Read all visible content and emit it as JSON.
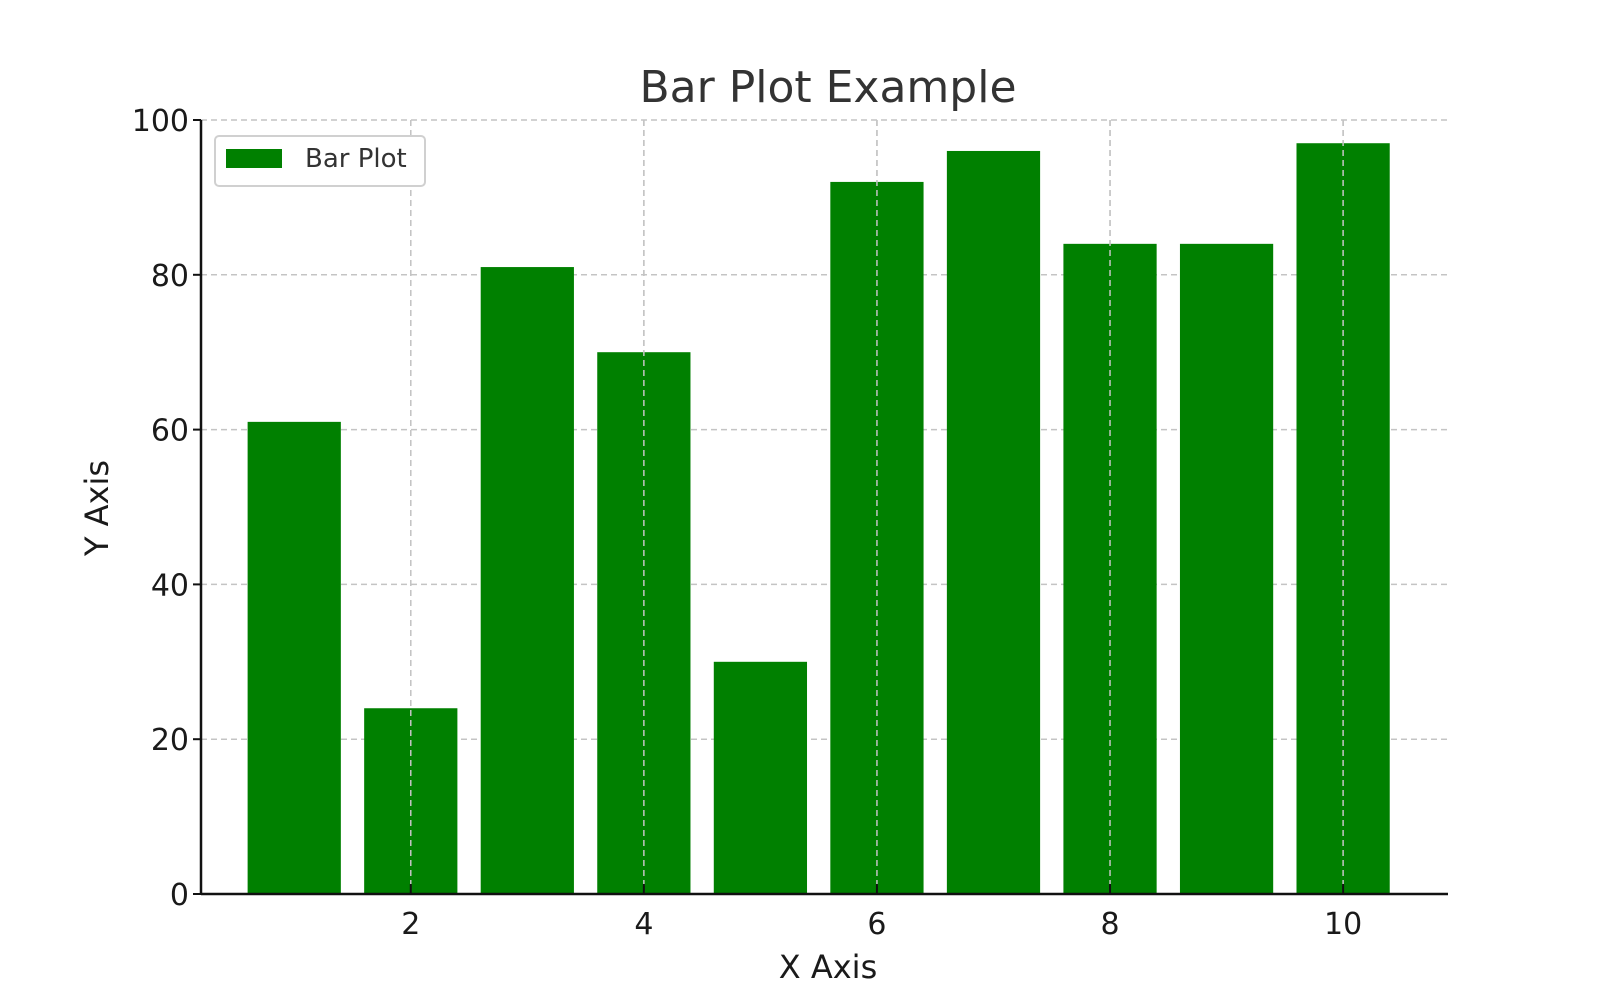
{
  "chart_data": {
    "type": "bar",
    "title": "Bar Plot Example",
    "xlabel": "X Axis",
    "ylabel": "Y Axis",
    "x": [
      1,
      2,
      3,
      4,
      5,
      6,
      7,
      8,
      9,
      10
    ],
    "values": [
      61,
      24,
      81,
      70,
      30,
      92,
      96,
      84,
      84,
      97
    ],
    "series": [
      {
        "name": "Bar Plot",
        "values": [
          61,
          24,
          81,
          70,
          30,
          92,
          96,
          84,
          84,
          97
        ]
      }
    ],
    "xlim": [
      0.2,
      10.9
    ],
    "ylim": [
      0,
      100
    ],
    "x_ticks": [
      2,
      4,
      6,
      8,
      10
    ],
    "y_ticks": [
      0,
      20,
      40,
      60,
      80,
      100
    ],
    "grid": true,
    "legend_position": "top-left",
    "bar_color": "#008000"
  }
}
